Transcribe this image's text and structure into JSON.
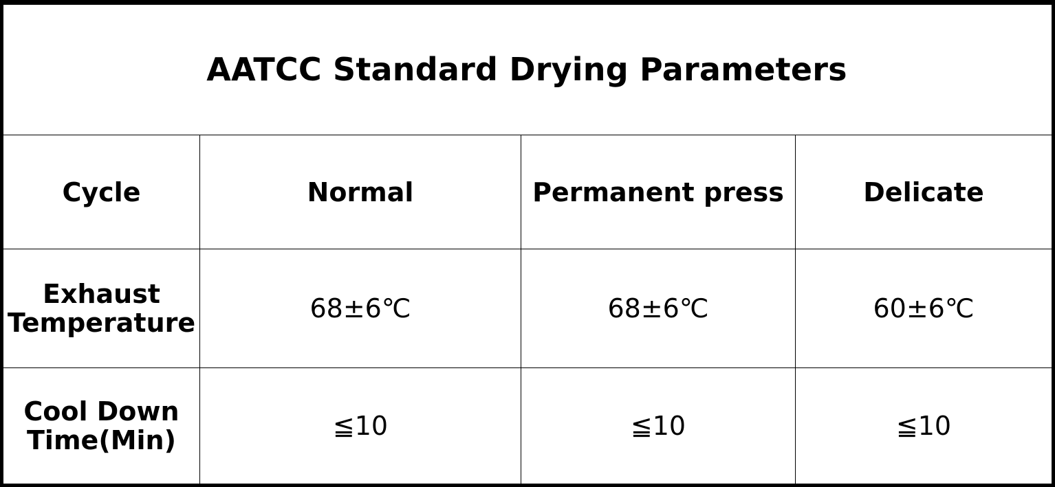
{
  "title": "AATCC Standard Drying Parameters",
  "table": {
    "header": {
      "row_label": "Cycle",
      "columns": [
        "Normal",
        "Permanent press",
        "Delicate"
      ]
    },
    "rows": [
      {
        "label_line1": "Exhaust",
        "label_line2": "Temperature",
        "values": [
          "68±6℃",
          "68±6℃",
          "60±6℃"
        ]
      },
      {
        "label_line1": "Cool Down",
        "label_line2": "Time(Min)",
        "values": [
          "≦10",
          "≦10",
          "≦10"
        ]
      }
    ]
  }
}
